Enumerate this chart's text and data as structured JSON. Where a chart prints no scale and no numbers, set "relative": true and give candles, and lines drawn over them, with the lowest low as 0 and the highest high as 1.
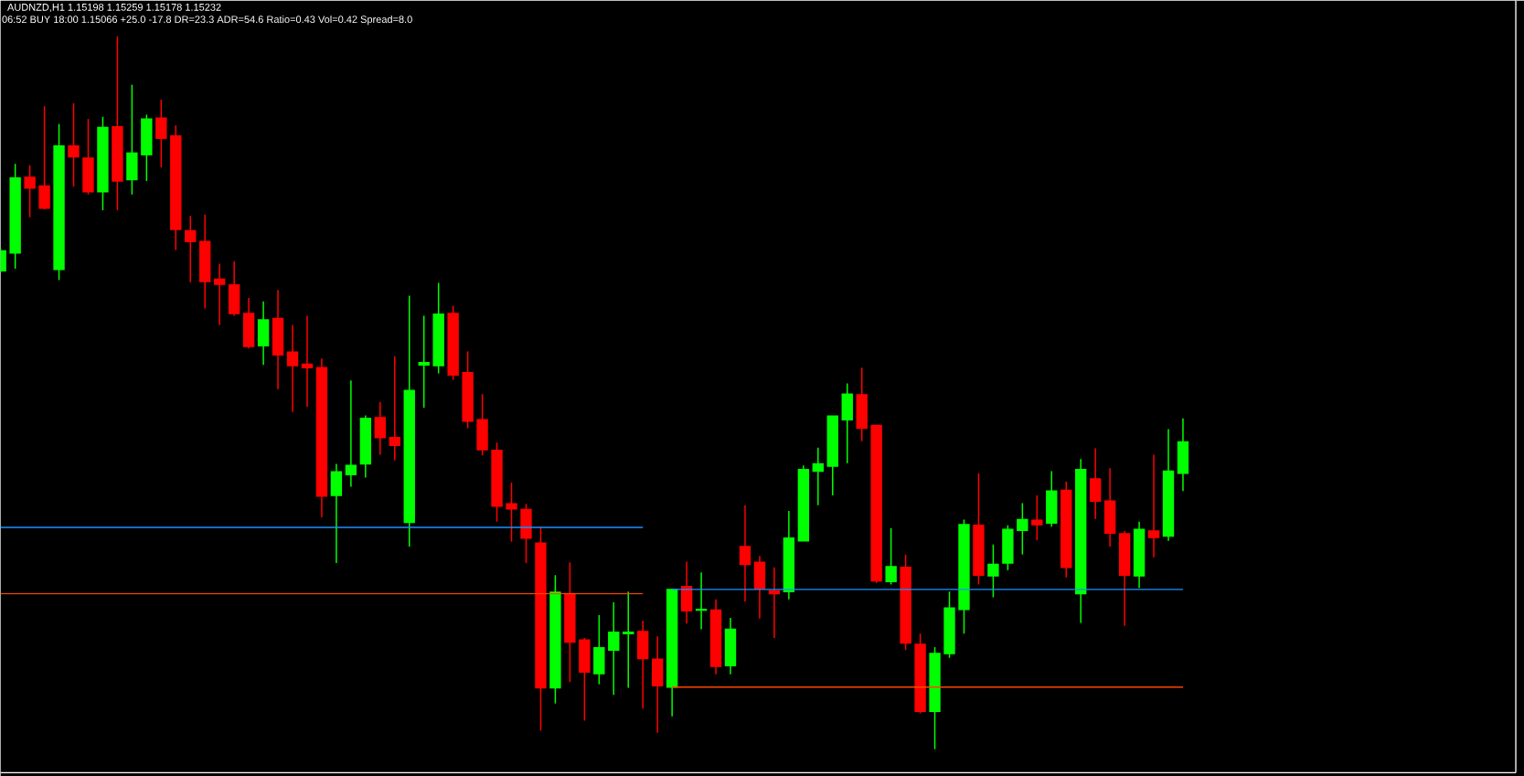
{
  "chart_data": {
    "type": "candlestick",
    "title": "AUDNZD,H1  1.15198 1.15259 1.15178 1.15232",
    "subtitle": "06:52  BUY 18:00 1.15066 +25.0 -17.8  DR=23.3  ADR=54.6  Ratio=0.43  Vol=0.42  Spread=8.0",
    "relative": true,
    "categories": [
      null,
      null,
      null,
      null,
      null,
      null,
      null,
      null,
      null,
      null,
      null,
      null,
      null,
      null,
      null,
      null,
      null,
      null,
      null,
      null,
      null,
      null,
      null,
      null,
      null,
      null,
      null,
      null,
      null,
      null,
      null,
      null,
      null,
      null,
      null,
      null,
      null,
      null,
      null,
      null,
      null,
      null,
      null,
      null,
      null,
      null,
      null,
      null,
      null,
      null,
      null,
      null,
      null,
      null,
      null,
      null,
      null,
      null,
      null,
      null,
      null,
      null,
      null,
      null,
      null,
      null,
      null,
      null,
      null,
      null,
      null,
      null,
      null,
      null,
      null,
      null,
      null,
      null,
      null,
      null,
      null,
      null
    ],
    "ohlc": [
      [
        0.671,
        0.703,
        0.668,
        0.699
      ],
      [
        0.696,
        0.821,
        0.674,
        0.801
      ],
      [
        0.802,
        0.819,
        0.746,
        0.787
      ],
      [
        0.79,
        0.902,
        0.757,
        0.759
      ],
      [
        0.673,
        0.877,
        0.658,
        0.846
      ],
      [
        0.846,
        0.906,
        0.789,
        0.831
      ],
      [
        0.829,
        0.884,
        0.778,
        0.782
      ],
      [
        0.782,
        0.887,
        0.756,
        0.872
      ],
      [
        0.873,
        1.0,
        0.756,
        0.797
      ],
      [
        0.799,
        0.932,
        0.778,
        0.836
      ],
      [
        0.834,
        0.89,
        0.797,
        0.884
      ],
      [
        0.885,
        0.911,
        0.816,
        0.857
      ],
      [
        0.86,
        0.875,
        0.7,
        0.729
      ],
      [
        0.727,
        0.748,
        0.655,
        0.712
      ],
      [
        0.712,
        0.75,
        0.618,
        0.656
      ],
      [
        0.659,
        0.681,
        0.595,
        0.652
      ],
      [
        0.651,
        0.684,
        0.608,
        0.611
      ],
      [
        0.611,
        0.633,
        0.562,
        0.565
      ],
      [
        0.566,
        0.628,
        0.539,
        0.602
      ],
      [
        0.604,
        0.644,
        0.505,
        0.553
      ],
      [
        0.557,
        0.595,
        0.473,
        0.538
      ],
      [
        0.54,
        0.608,
        0.48,
        0.535
      ],
      [
        0.535,
        0.548,
        0.325,
        0.355
      ],
      [
        0.356,
        0.4,
        0.261,
        0.389
      ],
      [
        0.385,
        0.517,
        0.368,
        0.398
      ],
      [
        0.4,
        0.468,
        0.381,
        0.464
      ],
      [
        0.465,
        0.487,
        0.413,
        0.437
      ],
      [
        0.437,
        0.551,
        0.405,
        0.426
      ],
      [
        0.318,
        0.636,
        0.284,
        0.503
      ],
      [
        0.539,
        0.608,
        0.479,
        0.542
      ],
      [
        0.538,
        0.654,
        0.527,
        0.61
      ],
      [
        0.611,
        0.622,
        0.518,
        0.525
      ],
      [
        0.528,
        0.558,
        0.45,
        0.46
      ],
      [
        0.462,
        0.498,
        0.412,
        0.42
      ],
      [
        0.419,
        0.43,
        0.319,
        0.341
      ],
      [
        0.344,
        0.374,
        0.291,
        0.337
      ],
      [
        0.336,
        0.344,
        0.261,
        0.296
      ],
      [
        0.289,
        0.312,
        0.026,
        0.086
      ],
      [
        0.086,
        0.244,
        0.064,
        0.22
      ],
      [
        0.218,
        0.262,
        0.094,
        0.15
      ],
      [
        0.153,
        0.156,
        0.04,
        0.108
      ],
      [
        0.106,
        0.188,
        0.091,
        0.142
      ],
      [
        0.139,
        0.206,
        0.076,
        0.164
      ],
      [
        0.162,
        0.221,
        0.086,
        0.164
      ],
      [
        0.165,
        0.18,
        0.057,
        0.127
      ],
      [
        0.126,
        0.158,
        0.023,
        0.089
      ],
      [
        0.087,
        0.225,
        0.046,
        0.224
      ],
      [
        0.228,
        0.263,
        0.176,
        0.194
      ],
      [
        0.195,
        0.248,
        0.168,
        0.196
      ],
      [
        0.195,
        0.21,
        0.105,
        0.116
      ],
      [
        0.117,
        0.184,
        0.105,
        0.168
      ],
      [
        0.284,
        0.342,
        0.207,
        0.259
      ],
      [
        0.262,
        0.271,
        0.183,
        0.225
      ],
      [
        0.222,
        0.255,
        0.156,
        0.218
      ],
      [
        0.221,
        0.334,
        0.21,
        0.296
      ],
      [
        0.292,
        0.398,
        0.292,
        0.392
      ],
      [
        0.39,
        0.423,
        0.342,
        0.4
      ],
      [
        0.397,
        0.467,
        0.356,
        0.467
      ],
      [
        0.462,
        0.513,
        0.401,
        0.498
      ],
      [
        0.497,
        0.535,
        0.432,
        0.45
      ],
      [
        0.454,
        0.454,
        0.233,
        0.236
      ],
      [
        0.235,
        0.31,
        0.231,
        0.256
      ],
      [
        0.255,
        0.273,
        0.139,
        0.149
      ],
      [
        0.147,
        0.162,
        0.05,
        0.053
      ],
      [
        0.053,
        0.143,
        0.0,
        0.134
      ],
      [
        0.134,
        0.221,
        0.128,
        0.198
      ],
      [
        0.196,
        0.322,
        0.162,
        0.315
      ],
      [
        0.314,
        0.387,
        0.231,
        0.244
      ],
      [
        0.243,
        0.287,
        0.213,
        0.259
      ],
      [
        0.261,
        0.314,
        0.251,
        0.308
      ],
      [
        0.307,
        0.345,
        0.273,
        0.322
      ],
      [
        0.321,
        0.356,
        0.293,
        0.315
      ],
      [
        0.317,
        0.39,
        0.312,
        0.362
      ],
      [
        0.363,
        0.375,
        0.241,
        0.255
      ],
      [
        0.218,
        0.407,
        0.177,
        0.392
      ],
      [
        0.379,
        0.422,
        0.323,
        0.348
      ],
      [
        0.348,
        0.394,
        0.284,
        0.303
      ],
      [
        0.302,
        0.306,
        0.173,
        0.244
      ],
      [
        0.243,
        0.319,
        0.226,
        0.308
      ],
      [
        0.306,
        0.413,
        0.269,
        0.297
      ],
      [
        0.299,
        0.449,
        0.292,
        0.39
      ],
      [
        0.387,
        0.464,
        0.362,
        0.431
      ]
    ],
    "colors": [
      "#00ff00",
      "#00ff00",
      "#ff0000",
      "#ff0000",
      "#00ff00",
      "#ff0000",
      "#ff0000",
      "#00ff00",
      "#ff0000",
      "#00ff00",
      "#00ff00",
      "#ff0000",
      "#ff0000",
      "#ff0000",
      "#ff0000",
      "#ff0000",
      "#ff0000",
      "#ff0000",
      "#00ff00",
      "#ff0000",
      "#ff0000",
      "#ff0000",
      "#ff0000",
      "#00ff00",
      "#00ff00",
      "#00ff00",
      "#ff0000",
      "#ff0000",
      "#00ff00",
      "#00ff00",
      "#00ff00",
      "#ff0000",
      "#ff0000",
      "#ff0000",
      "#ff0000",
      "#ff0000",
      "#ff0000",
      "#ff0000",
      "#00ff00",
      "#ff0000",
      "#ff0000",
      "#00ff00",
      "#00ff00",
      "#00ff00",
      "#ff0000",
      "#ff0000",
      "#00ff00",
      "#ff0000",
      "#00ff00",
      "#ff0000",
      "#00ff00",
      "#ff0000",
      "#ff0000",
      "#ff0000",
      "#00ff00",
      "#00ff00",
      "#00ff00",
      "#00ff00",
      "#00ff00",
      "#ff0000",
      "#ff0000",
      "#00ff00",
      "#ff0000",
      "#ff0000",
      "#00ff00",
      "#00ff00",
      "#00ff00",
      "#ff0000",
      "#00ff00",
      "#00ff00",
      "#00ff00",
      "#ff0000",
      "#00ff00",
      "#ff0000",
      "#00ff00",
      "#ff0000",
      "#ff0000",
      "#ff0000",
      "#00ff00",
      "#ff0000",
      "#00ff00",
      "#00ff00"
    ],
    "series": [
      {
        "type": "line",
        "color": "#1e90ff",
        "values": [
          0.311,
          0.311,
          0.311,
          0.311,
          0.311,
          0.311,
          0.311,
          0.311,
          0.311,
          0.311,
          0.311,
          0.311,
          0.311,
          0.311,
          0.311,
          0.311,
          0.311,
          0.311,
          0.311,
          0.311,
          0.311,
          0.311,
          0.311,
          0.311,
          0.311,
          0.311,
          0.311,
          0.311,
          0.311,
          0.311,
          0.311,
          0.311,
          0.311,
          0.311,
          0.311,
          0.311,
          0.311,
          0.311,
          0.311,
          0.311,
          0.311,
          0.311,
          0.311,
          0.311,
          0.311,
          null,
          null,
          null,
          null,
          null,
          null,
          null,
          null,
          null,
          null,
          null,
          null,
          null,
          null,
          null,
          null,
          null,
          null,
          null,
          null,
          null,
          null,
          null,
          null,
          null,
          null,
          null,
          null,
          null,
          null,
          null,
          null,
          null,
          null,
          null,
          null,
          null
        ]
      },
      {
        "type": "line",
        "color": "#ff4500",
        "values": [
          0.218,
          0.218,
          0.218,
          0.218,
          0.218,
          0.218,
          0.218,
          0.218,
          0.218,
          0.218,
          0.218,
          0.218,
          0.218,
          0.218,
          0.218,
          0.218,
          0.218,
          0.218,
          0.218,
          0.218,
          0.218,
          0.218,
          0.218,
          0.218,
          0.218,
          0.218,
          0.218,
          0.218,
          0.218,
          0.218,
          0.218,
          0.218,
          0.218,
          0.218,
          0.218,
          0.218,
          0.218,
          0.218,
          0.218,
          0.218,
          0.218,
          0.218,
          0.218,
          0.218,
          0.218,
          null,
          null,
          null,
          null,
          null,
          null,
          null,
          null,
          null,
          null,
          null,
          null,
          null,
          null,
          null,
          null,
          null,
          null,
          null,
          null,
          null,
          null,
          null,
          null,
          null,
          null,
          null,
          null,
          null,
          null,
          null,
          null,
          null,
          null,
          null,
          null,
          null
        ]
      },
      {
        "type": "line",
        "color": "#1e90ff",
        "values": [
          null,
          null,
          null,
          null,
          null,
          null,
          null,
          null,
          null,
          null,
          null,
          null,
          null,
          null,
          null,
          null,
          null,
          null,
          null,
          null,
          null,
          null,
          null,
          null,
          null,
          null,
          null,
          null,
          null,
          null,
          null,
          null,
          null,
          null,
          null,
          null,
          null,
          null,
          null,
          null,
          null,
          null,
          null,
          null,
          null,
          null,
          0.224,
          0.224,
          0.224,
          0.224,
          0.224,
          0.224,
          0.224,
          0.224,
          0.224,
          0.224,
          0.224,
          0.224,
          0.224,
          0.224,
          0.224,
          0.224,
          0.224,
          0.224,
          0.224,
          0.224,
          0.224,
          0.224,
          0.224,
          0.224,
          0.224,
          0.224,
          0.224,
          0.224,
          0.224,
          0.224,
          0.224,
          0.224,
          0.224,
          0.224,
          0.224,
          0.224
        ]
      },
      {
        "type": "line",
        "color": "#ff4500",
        "values": [
          null,
          null,
          null,
          null,
          null,
          null,
          null,
          null,
          null,
          null,
          null,
          null,
          null,
          null,
          null,
          null,
          null,
          null,
          null,
          null,
          null,
          null,
          null,
          null,
          null,
          null,
          null,
          null,
          null,
          null,
          null,
          null,
          null,
          null,
          null,
          null,
          null,
          null,
          null,
          null,
          null,
          null,
          null,
          null,
          null,
          null,
          0.087,
          0.087,
          0.087,
          0.087,
          0.087,
          0.087,
          0.087,
          0.087,
          0.087,
          0.087,
          0.087,
          0.087,
          0.087,
          0.087,
          0.087,
          0.087,
          0.087,
          0.087,
          0.087,
          0.087,
          0.087,
          0.087,
          0.087,
          0.087,
          0.087,
          0.087,
          0.087,
          0.087,
          0.087,
          0.087,
          0.087,
          0.087,
          0.087,
          0.087,
          0.087,
          0.087
        ]
      }
    ]
  }
}
